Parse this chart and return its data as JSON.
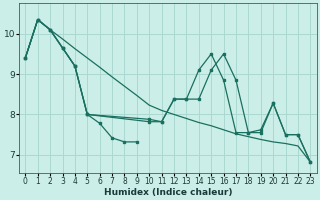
{
  "background_color": "#cceee8",
  "grid_color": "#aad8d0",
  "line_color": "#1a7060",
  "xlabel": "Humidex (Indice chaleur)",
  "xlim": [
    -0.5,
    23.5
  ],
  "ylim": [
    6.55,
    10.75
  ],
  "yticks": [
    7,
    8,
    9,
    10
  ],
  "xticks": [
    0,
    1,
    2,
    3,
    4,
    5,
    6,
    7,
    8,
    9,
    10,
    11,
    12,
    13,
    14,
    15,
    16,
    17,
    18,
    19,
    20,
    21,
    22,
    23
  ],
  "line1_x": [
    0,
    1,
    2,
    3,
    4,
    5,
    6,
    7,
    8,
    9
  ],
  "line1_y": [
    9.4,
    10.35,
    10.1,
    9.65,
    9.2,
    8.0,
    7.78,
    7.42,
    7.32,
    7.32
  ],
  "line2_x": [
    0,
    1,
    2,
    3,
    4,
    5,
    10,
    11,
    12,
    13,
    14,
    15,
    16,
    17,
    18,
    19,
    20,
    21,
    22,
    23
  ],
  "line2_y": [
    9.4,
    10.35,
    10.1,
    9.65,
    9.2,
    8.0,
    7.82,
    7.82,
    8.38,
    8.38,
    9.1,
    9.5,
    8.85,
    7.55,
    7.55,
    7.62,
    8.28,
    7.5,
    7.5,
    6.82
  ],
  "line3_x": [
    0,
    1,
    2,
    3,
    4,
    5,
    10,
    11,
    12,
    13,
    14,
    15,
    16,
    17,
    18,
    19,
    20,
    21,
    22,
    23
  ],
  "line3_y": [
    9.4,
    10.35,
    10.1,
    9.65,
    9.2,
    8.0,
    7.88,
    7.82,
    8.38,
    8.38,
    8.38,
    9.1,
    9.5,
    8.85,
    7.55,
    7.55,
    8.28,
    7.5,
    7.5,
    6.82
  ],
  "line4_x": [
    0,
    1,
    2,
    3,
    4,
    5,
    6,
    7,
    8,
    9,
    10,
    11,
    12,
    13,
    14,
    15,
    16,
    17,
    18,
    19,
    20,
    21,
    22,
    23
  ],
  "line4_y": [
    9.4,
    10.35,
    10.1,
    9.87,
    9.63,
    9.4,
    9.17,
    8.93,
    8.7,
    8.47,
    8.23,
    8.1,
    8.0,
    7.9,
    7.8,
    7.72,
    7.62,
    7.52,
    7.45,
    7.38,
    7.32,
    7.28,
    7.22,
    6.82
  ]
}
